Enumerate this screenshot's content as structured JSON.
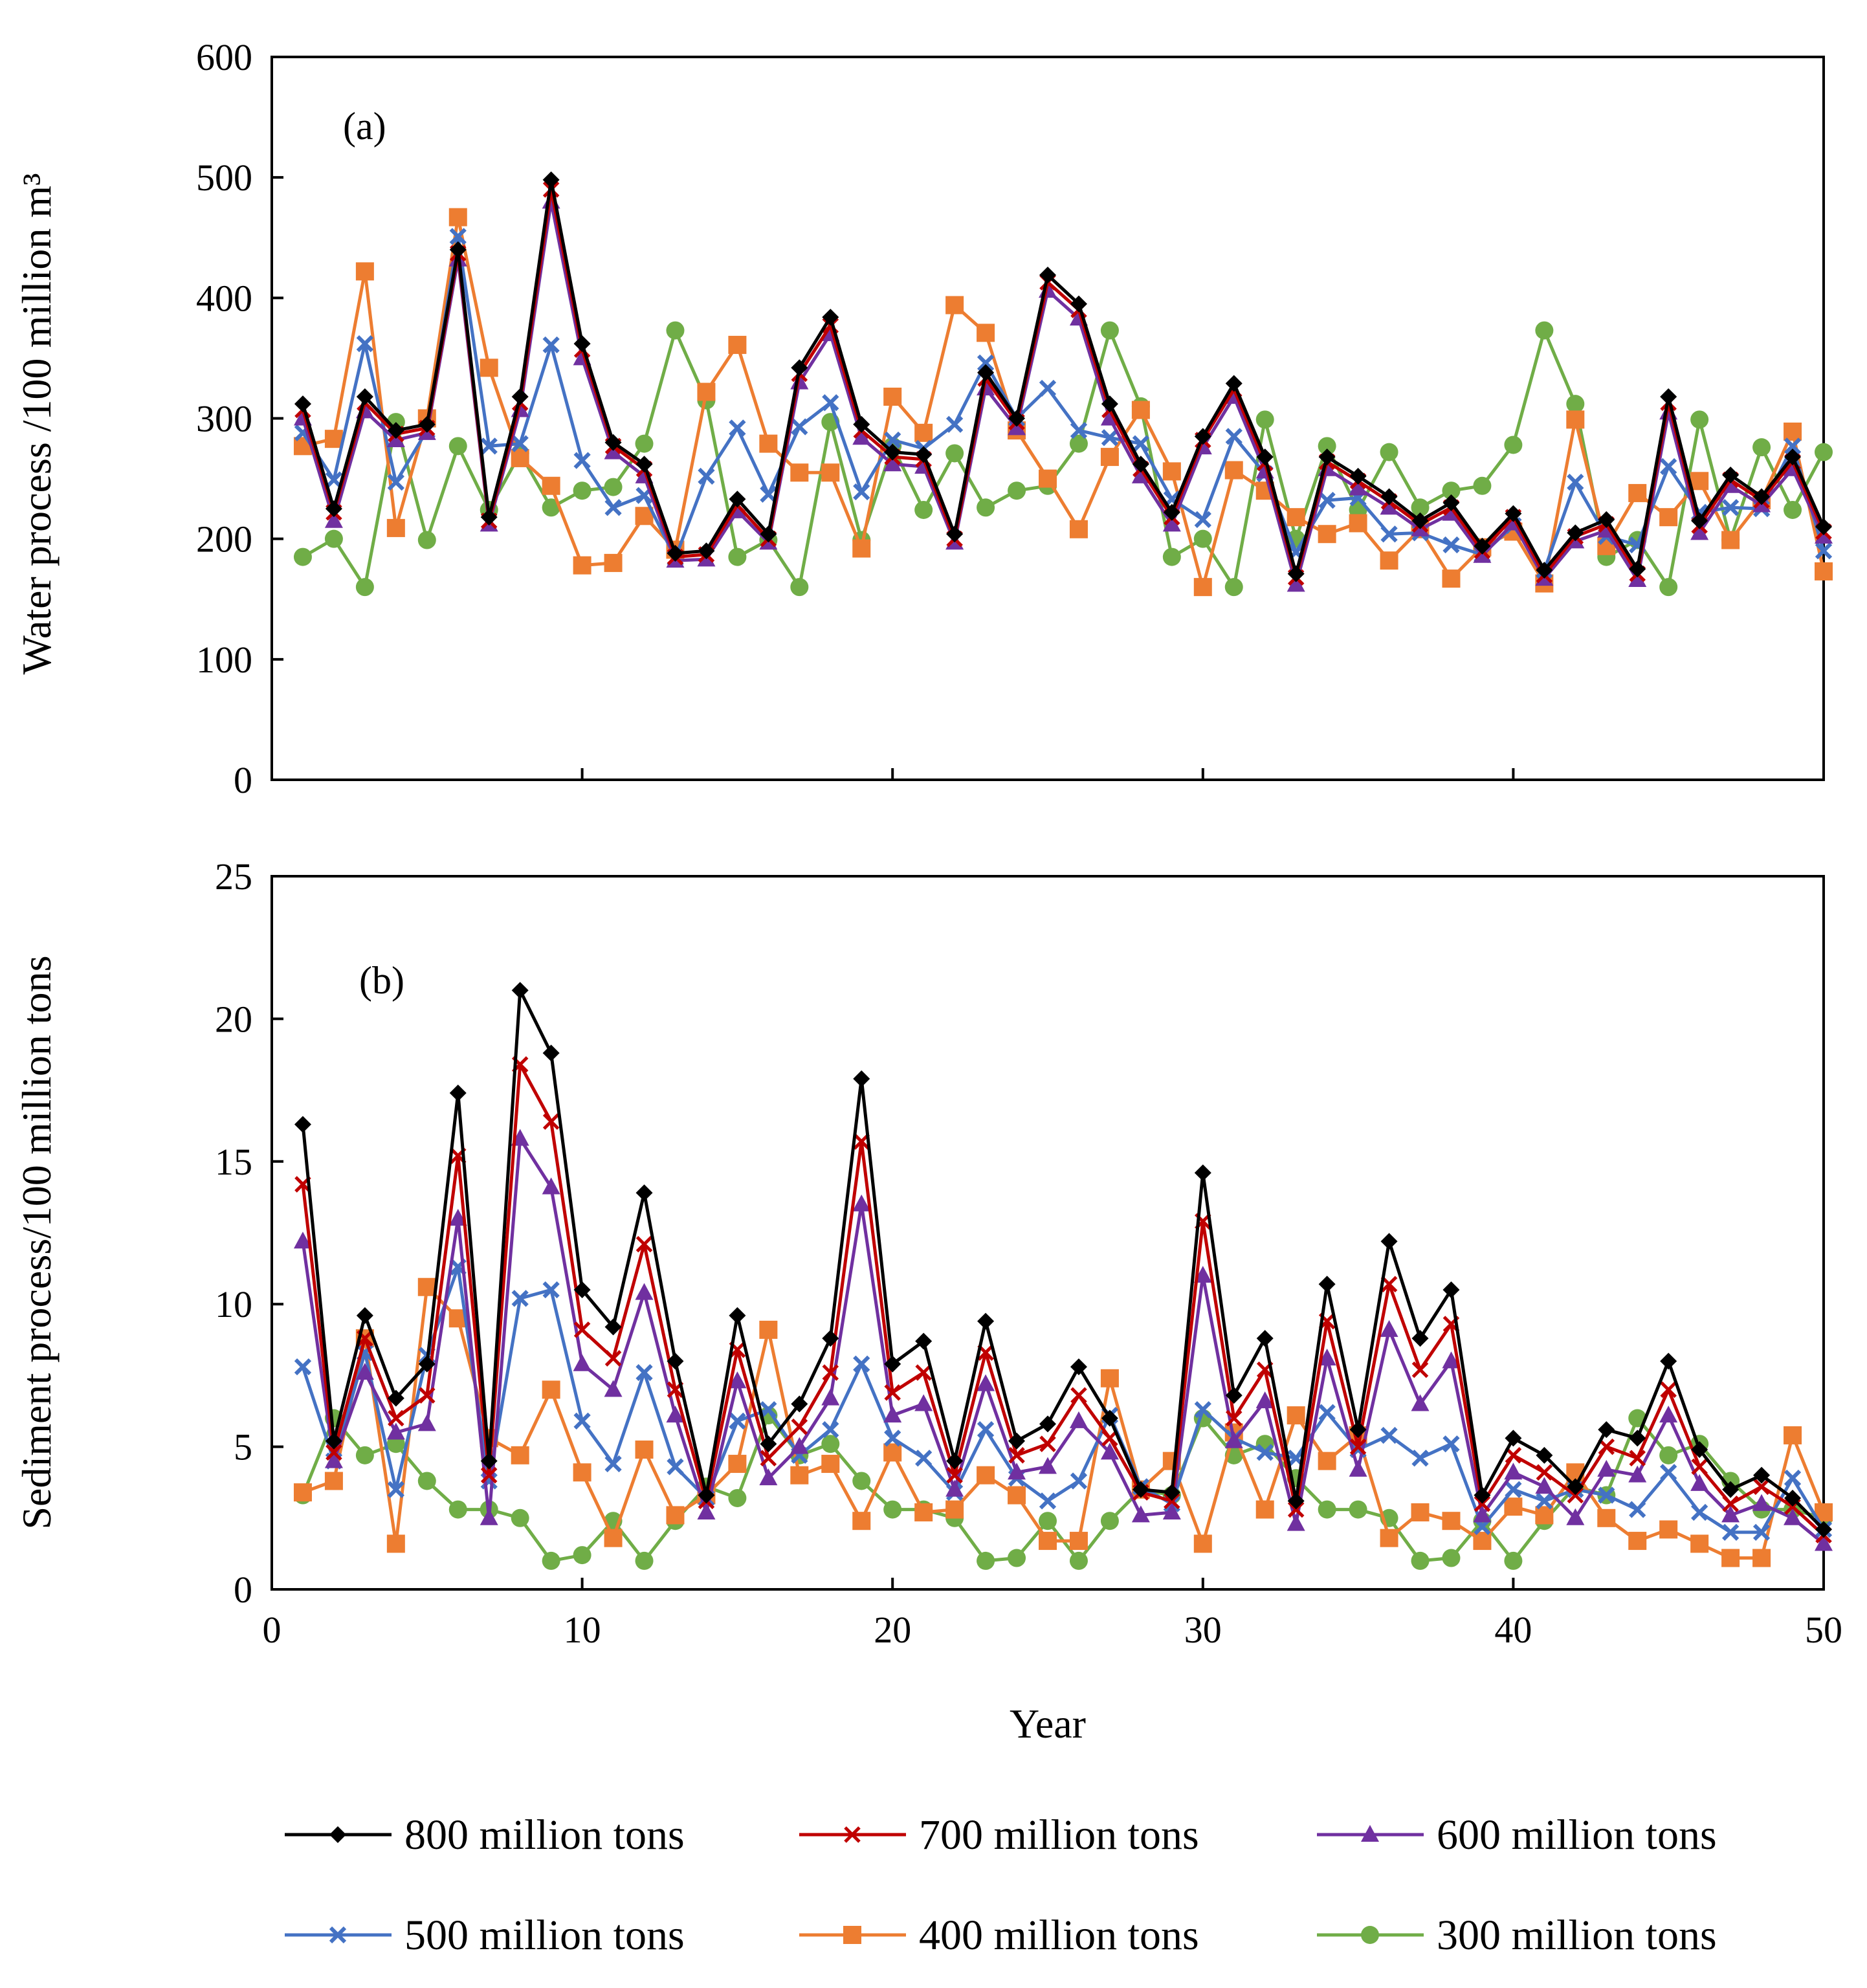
{
  "chart_data": [
    {
      "type": "line",
      "panel_label": "(a)",
      "ylabel": "Water process /100 million m³",
      "xlabel": "",
      "xlim": [
        0,
        50
      ],
      "ylim": [
        0,
        600
      ],
      "xticks": [
        0,
        10,
        20,
        30,
        40,
        50
      ],
      "yticks": [
        0,
        100,
        200,
        300,
        400,
        500,
        600
      ],
      "x": [
        1,
        2,
        3,
        4,
        5,
        6,
        7,
        8,
        9,
        10,
        11,
        12,
        13,
        14,
        15,
        16,
        17,
        18,
        19,
        20,
        21,
        22,
        23,
        24,
        25,
        26,
        27,
        28,
        29,
        30,
        31,
        32,
        33,
        34,
        35,
        36,
        37,
        38,
        39,
        40,
        41,
        42,
        43,
        44,
        45,
        46,
        47,
        48,
        49,
        50
      ],
      "series": [
        {
          "name": "800 million tons",
          "values": [
            312,
            225,
            318,
            290,
            295,
            440,
            218,
            318,
            498,
            362,
            280,
            262,
            188,
            190,
            233,
            204,
            342,
            384,
            295,
            272,
            270,
            204,
            338,
            300,
            419,
            395,
            312,
            262,
            222,
            285,
            329,
            268,
            171,
            268,
            252,
            235,
            215,
            230,
            194,
            221,
            174,
            205,
            216,
            175,
            318,
            215,
            253,
            235,
            268,
            210
          ]
        },
        {
          "name": "700 million tons",
          "values": [
            307,
            222,
            313,
            287,
            292,
            437,
            215,
            313,
            490,
            357,
            277,
            258,
            185,
            187,
            228,
            200,
            337,
            377,
            290,
            268,
            266,
            200,
            333,
            297,
            413,
            390,
            307,
            258,
            218,
            282,
            324,
            263,
            168,
            264,
            248,
            231,
            212,
            226,
            190,
            218,
            170,
            202,
            212,
            171,
            313,
            211,
            249,
            232,
            264,
            206
          ]
        },
        {
          "name": "600 million tons",
          "values": [
            300,
            215,
            306,
            282,
            288,
            432,
            212,
            307,
            480,
            350,
            272,
            252,
            182,
            183,
            223,
            197,
            330,
            370,
            284,
            262,
            260,
            197,
            325,
            292,
            406,
            383,
            300,
            252,
            212,
            276,
            318,
            256,
            162,
            258,
            242,
            226,
            208,
            221,
            186,
            213,
            167,
            198,
            207,
            166,
            305,
            205,
            244,
            228,
            258,
            202
          ]
        },
        {
          "name": "500 million tons",
          "values": [
            288,
            249,
            362,
            247,
            290,
            451,
            277,
            279,
            361,
            265,
            226,
            236,
            184,
            252,
            292,
            237,
            293,
            313,
            239,
            282,
            275,
            295,
            346,
            300,
            325,
            290,
            284,
            279,
            233,
            216,
            285,
            254,
            189,
            232,
            234,
            204,
            205,
            195,
            187,
            211,
            174,
            247,
            202,
            195,
            260,
            222,
            226,
            225,
            277,
            190
          ]
        },
        {
          "name": "400 million tons",
          "values": [
            277,
            283,
            422,
            209,
            300,
            467,
            342,
            267,
            244,
            178,
            180,
            219,
            191,
            322,
            361,
            279,
            255,
            255,
            192,
            318,
            288,
            394,
            371,
            290,
            250,
            208,
            268,
            307,
            256,
            160,
            257,
            240,
            218,
            204,
            213,
            182,
            208,
            167,
            193,
            206,
            163,
            299,
            194,
            238,
            218,
            248,
            199,
            232,
            289,
            173
          ]
        },
        {
          "name": "300 million tons",
          "values": [
            185,
            200,
            160,
            297,
            199,
            277,
            224,
            271,
            226,
            240,
            243,
            279,
            373,
            315,
            185,
            199,
            160,
            297,
            199,
            277,
            224,
            271,
            226,
            240,
            244,
            279,
            373,
            310,
            185,
            200,
            160,
            299,
            200,
            277,
            224,
            272,
            226,
            240,
            244,
            278,
            373,
            312,
            185,
            199,
            160,
            299,
            199,
            276,
            224,
            272
          ]
        }
      ]
    },
    {
      "type": "line",
      "panel_label": "(b)",
      "ylabel": "Sediment process/100 million tons",
      "xlabel": "Year",
      "xlim": [
        0,
        50
      ],
      "ylim": [
        0,
        25
      ],
      "xticks": [
        0,
        10,
        20,
        30,
        40,
        50
      ],
      "yticks": [
        0,
        5,
        10,
        15,
        20,
        25
      ],
      "x": [
        1,
        2,
        3,
        4,
        5,
        6,
        7,
        8,
        9,
        10,
        11,
        12,
        13,
        14,
        15,
        16,
        17,
        18,
        19,
        20,
        21,
        22,
        23,
        24,
        25,
        26,
        27,
        28,
        29,
        30,
        31,
        32,
        33,
        34,
        35,
        36,
        37,
        38,
        39,
        40,
        41,
        42,
        43,
        44,
        45,
        46,
        47,
        48,
        49,
        50
      ],
      "series": [
        {
          "name": "800 million tons",
          "values": [
            16.3,
            5.2,
            9.6,
            6.7,
            7.9,
            17.4,
            4.5,
            21.0,
            18.8,
            10.5,
            9.2,
            13.9,
            8.0,
            3.3,
            9.6,
            5.1,
            6.5,
            8.8,
            17.9,
            7.9,
            8.7,
            4.5,
            9.4,
            5.2,
            5.8,
            7.8,
            6.0,
            3.5,
            3.4,
            14.6,
            6.8,
            8.8,
            3.1,
            10.7,
            5.6,
            12.2,
            8.8,
            10.5,
            3.3,
            5.3,
            4.7,
            3.6,
            5.6,
            5.3,
            8.0,
            4.9,
            3.5,
            4.0,
            3.2,
            2.1
          ]
        },
        {
          "name": "700 million tons",
          "values": [
            14.2,
            4.8,
            8.8,
            6.0,
            6.8,
            15.2,
            4.0,
            18.4,
            16.4,
            9.1,
            8.1,
            12.1,
            7.0,
            3.1,
            8.4,
            4.6,
            5.7,
            7.6,
            15.7,
            6.9,
            7.6,
            4.0,
            8.3,
            4.7,
            5.1,
            6.8,
            5.3,
            3.4,
            3.1,
            12.9,
            6.0,
            7.7,
            2.8,
            9.4,
            5.0,
            10.7,
            7.7,
            9.3,
            3.0,
            4.7,
            4.1,
            3.3,
            5.0,
            4.6,
            7.0,
            4.3,
            3.0,
            3.6,
            2.9,
            1.9
          ]
        },
        {
          "name": "600 million tons",
          "values": [
            12.2,
            4.5,
            7.6,
            5.5,
            5.8,
            13.0,
            2.5,
            15.8,
            14.1,
            7.9,
            7.0,
            10.4,
            6.1,
            2.7,
            7.3,
            3.9,
            5.0,
            6.7,
            13.5,
            6.1,
            6.5,
            3.5,
            7.2,
            4.1,
            4.3,
            5.9,
            4.8,
            2.6,
            2.7,
            11.0,
            5.2,
            6.6,
            2.3,
            8.1,
            4.2,
            9.1,
            6.5,
            8.0,
            2.6,
            4.1,
            3.6,
            2.5,
            4.2,
            4.0,
            6.1,
            3.7,
            2.6,
            3.0,
            2.5,
            1.6
          ]
        },
        {
          "name": "500 million tons",
          "values": [
            7.8,
            4.5,
            8.3,
            3.5,
            8.2,
            11.3,
            3.8,
            10.2,
            10.5,
            5.9,
            4.4,
            7.6,
            4.3,
            3.2,
            5.9,
            6.3,
            4.7,
            5.6,
            7.9,
            5.3,
            4.6,
            3.4,
            5.6,
            3.9,
            3.1,
            3.8,
            6.1,
            3.6,
            3.0,
            6.3,
            5.3,
            4.8,
            4.6,
            6.2,
            4.9,
            5.4,
            4.6,
            5.1,
            2.2,
            3.5,
            3.1,
            3.5,
            3.3,
            2.8,
            4.1,
            2.7,
            2.0,
            2.0,
            3.9,
            2.1
          ]
        },
        {
          "name": "400 million tons",
          "values": [
            3.4,
            3.8,
            8.8,
            1.6,
            10.6,
            9.5,
            5.3,
            4.7,
            7.0,
            4.1,
            1.8,
            4.9,
            2.6,
            3.3,
            4.4,
            9.1,
            4.0,
            4.4,
            2.4,
            4.8,
            2.7,
            2.8,
            4.0,
            3.3,
            1.7,
            1.7,
            7.4,
            3.5,
            4.5,
            1.6,
            5.5,
            2.8,
            6.1,
            4.5,
            5.4,
            1.8,
            2.7,
            2.4,
            1.7,
            2.9,
            2.6,
            4.1,
            2.5,
            1.7,
            2.1,
            1.6,
            1.1,
            1.1,
            5.4,
            2.7
          ]
        },
        {
          "name": "300 million tons",
          "values": [
            3.3,
            6.0,
            4.7,
            5.1,
            3.8,
            2.8,
            2.8,
            2.5,
            1.0,
            1.2,
            2.4,
            1.0,
            2.4,
            3.6,
            3.2,
            6.1,
            4.7,
            5.1,
            3.8,
            2.8,
            2.8,
            2.5,
            1.0,
            1.1,
            2.4,
            1.0,
            2.4,
            3.5,
            3.3,
            6.0,
            4.7,
            5.1,
            3.9,
            2.8,
            2.8,
            2.5,
            1.0,
            1.1,
            2.4,
            1.0,
            2.4,
            3.6,
            3.3,
            6.0,
            4.7,
            5.1,
            3.8,
            2.8,
            2.8,
            2.5
          ]
        }
      ]
    }
  ],
  "series_styles": [
    {
      "color": "#000000",
      "marker": "diamond"
    },
    {
      "color": "#c00000",
      "marker": "cross"
    },
    {
      "color": "#7030a0",
      "marker": "triangle"
    },
    {
      "color": "#4472c4",
      "marker": "xmark"
    },
    {
      "color": "#ed7d31",
      "marker": "square"
    },
    {
      "color": "#70ad47",
      "marker": "circle"
    }
  ],
  "legend": {
    "placement": "bottom",
    "entries": [
      "800 million tons",
      "700 million tons",
      "600 million tons",
      "500 million tons",
      "400 million tons",
      "300 million tons"
    ]
  }
}
